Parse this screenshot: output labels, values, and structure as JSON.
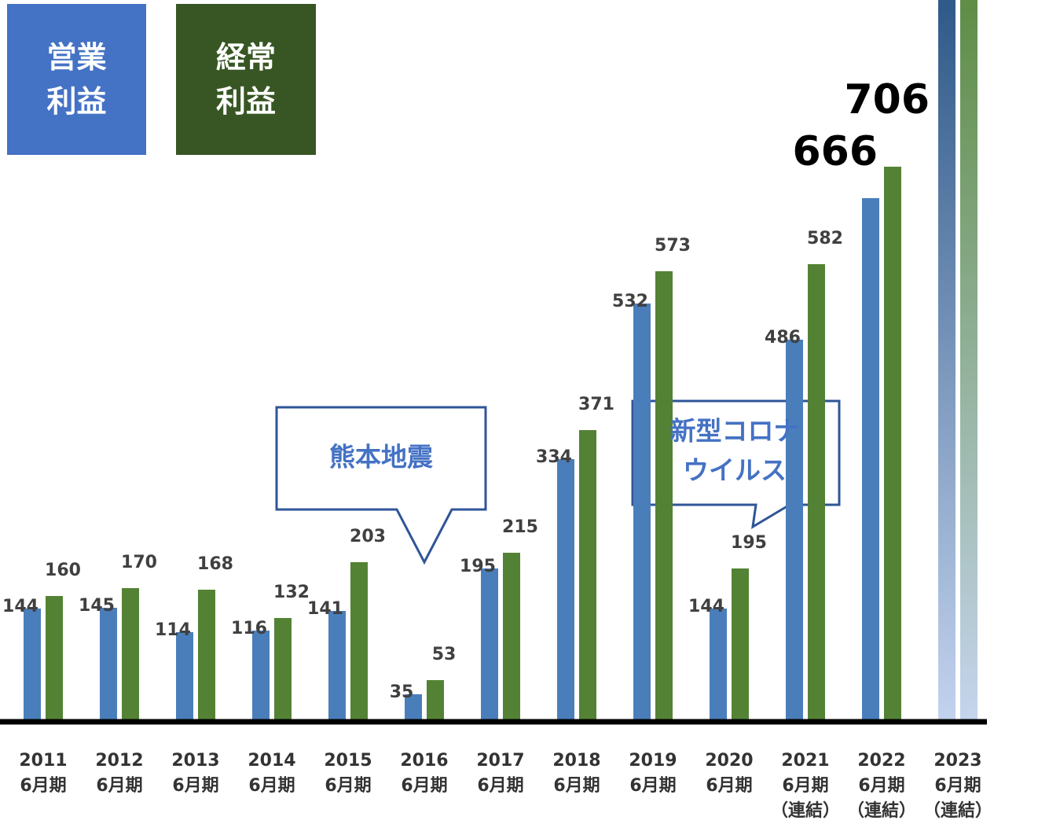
{
  "chart_data": {
    "type": "bar",
    "categories": [
      [
        "2011",
        "6月期"
      ],
      [
        "2012",
        "6月期"
      ],
      [
        "2013",
        "6月期"
      ],
      [
        "2014",
        "6月期"
      ],
      [
        "2015",
        "6月期"
      ],
      [
        "2016",
        "6月期"
      ],
      [
        "2017",
        "6月期"
      ],
      [
        "2018",
        "6月期"
      ],
      [
        "2019",
        "6月期"
      ],
      [
        "2020",
        "6月期"
      ],
      [
        "2021",
        "6月期",
        "（連結）"
      ],
      [
        "2022",
        "6月期",
        "（連結）"
      ],
      [
        "2023",
        "6月期",
        "（連結）"
      ]
    ],
    "series": [
      {
        "name": "営業利益",
        "color": "#4a7ebb",
        "legend_color": "#4472c4",
        "gradient": [
          "#2a5585",
          "#c3d3ee"
        ],
        "values": [
          144,
          145,
          114,
          116,
          141,
          35,
          195,
          334,
          532,
          144,
          486,
          666,
          950
        ],
        "value_labels": [
          "144",
          "145",
          "114",
          "116",
          "141",
          "35",
          "195",
          "334",
          "532",
          "144",
          "486",
          "666",
          null
        ]
      },
      {
        "name": "経常利益",
        "color": "#548235",
        "legend_color": "#375623",
        "gradient": [
          "#5a8a3e",
          "#c5d5ee"
        ],
        "values": [
          160,
          170,
          168,
          132,
          203,
          53,
          215,
          371,
          573,
          195,
          582,
          706,
          960
        ],
        "value_labels": [
          "160",
          "170",
          "168",
          "132",
          "203",
          "53",
          "215",
          "371",
          "573",
          "195",
          "582",
          "706",
          null
        ]
      }
    ],
    "emphasis_category": 11,
    "gradient_category": 12,
    "ylim": [
      0,
      918
    ],
    "annotations": [
      [
        "熊本地震"
      ],
      [
        "新型コロナ",
        "ウイルス"
      ]
    ]
  }
}
